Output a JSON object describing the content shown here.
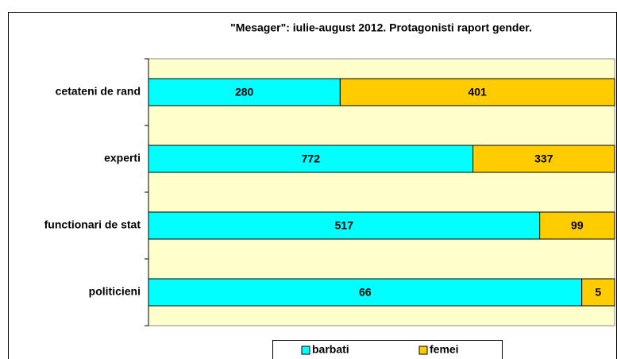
{
  "chart_data": {
    "type": "stacked_percent_bar_horizontal",
    "title": "\"Mesager\": iulie-august 2012. Protagonisti raport gender.",
    "categories": [
      "cetateni de rand",
      "experti",
      "functionari de stat",
      "politicieni"
    ],
    "series": [
      {
        "name": "barbati",
        "color": "#00ffff",
        "values": [
          280,
          772,
          517,
          66
        ]
      },
      {
        "name": "femei",
        "color": "#ffcc00",
        "values": [
          401,
          337,
          99,
          5
        ]
      }
    ],
    "plot_background": "#ffffcc",
    "legend": "bottom"
  }
}
